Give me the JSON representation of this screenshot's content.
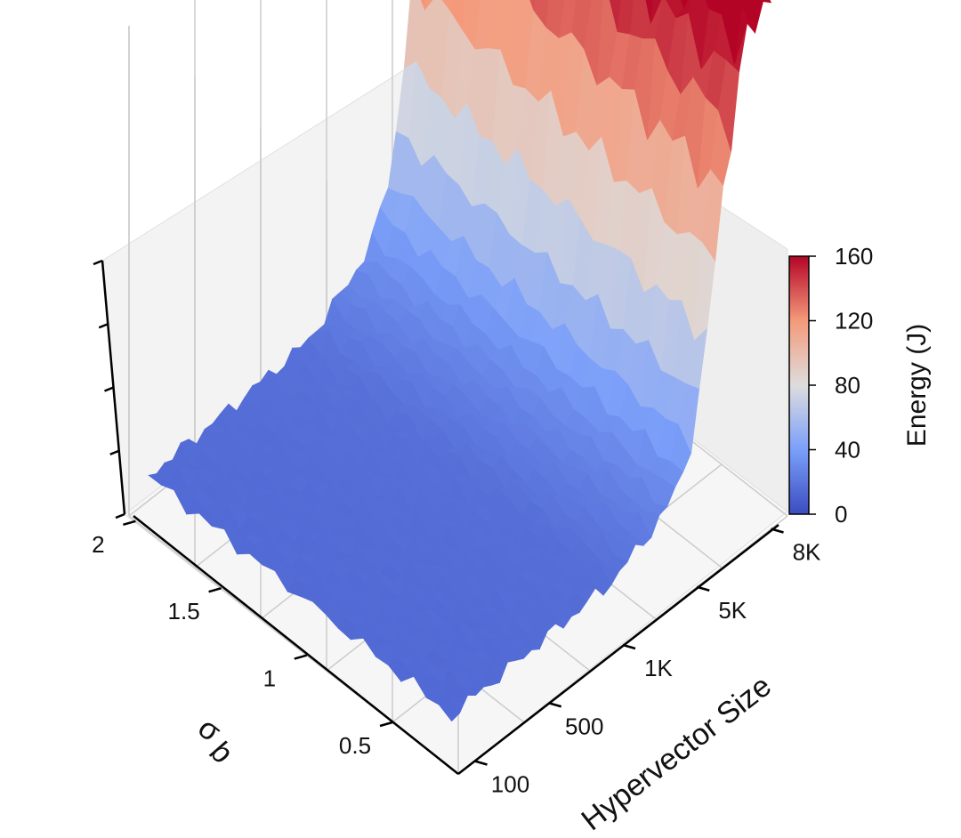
{
  "chart_data": {
    "type": "surface",
    "title": "",
    "colormap": "coolwarm",
    "x_axis": {
      "label": "Hypervector Size",
      "ticks": [
        "100",
        "500",
        "1K",
        "5K",
        "8K"
      ]
    },
    "y_axis": {
      "label": "σ",
      "label_subscript": "b",
      "ticks": [
        "0.5",
        "1",
        "1.5",
        "2"
      ]
    },
    "z_axis": {
      "label": "",
      "range": [
        0,
        160
      ],
      "tick_labels_shown": false
    },
    "colorbar": {
      "label": "Energy (J)",
      "ticks": [
        "0",
        "40",
        "80",
        "120",
        "160"
      ],
      "range": [
        0,
        160
      ]
    },
    "surface_profile": {
      "description_by_hypervector_size_index": "low plateau for small sizes, step rise near largest sizes",
      "size_index": [
        0,
        1,
        2,
        3,
        4
      ],
      "energy_at_sigma_low": [
        12,
        15,
        20,
        60,
        150
      ],
      "energy_at_sigma_high": [
        14,
        18,
        25,
        80,
        155
      ]
    },
    "colors": {
      "low": "#3b4cc0",
      "mid": "#dddddd",
      "high": "#b40426",
      "pane": "#f2f2f2",
      "grid": "#c8c8c8"
    }
  }
}
